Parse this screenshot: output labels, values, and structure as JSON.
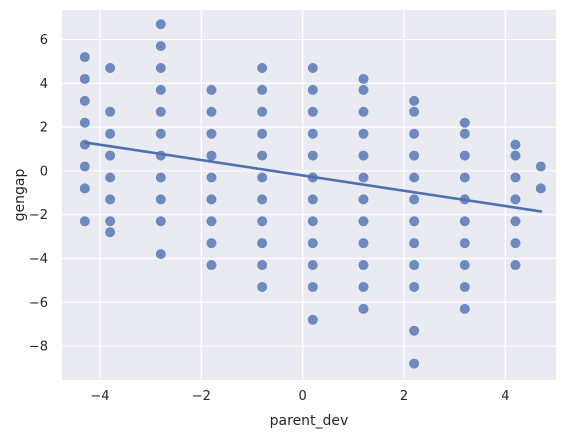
{
  "chart_data": {
    "type": "scatter",
    "xlabel": "parent_dev",
    "ylabel": "gengap",
    "xlim": [
      -4.75,
      5.0
    ],
    "ylim": [
      -9.55,
      7.35
    ],
    "x_ticks": [
      -4,
      -2,
      0,
      2,
      4
    ],
    "y_ticks": [
      -8,
      -6,
      -4,
      -2,
      0,
      2,
      4,
      6
    ],
    "grid": true,
    "colors": {
      "background": "#eaeaf2",
      "point": "#4c72b0",
      "line": "#4c72b0",
      "grid": "#ffffff"
    },
    "columns": [
      {
        "x": -4.3,
        "y": [
          5.2,
          4.2,
          3.2,
          2.2,
          1.2,
          0.2,
          -0.8,
          -2.3
        ]
      },
      {
        "x": -3.8,
        "y": [
          4.7,
          2.7,
          1.7,
          0.7,
          -0.3,
          -1.3,
          -2.3,
          -2.8
        ]
      },
      {
        "x": -2.8,
        "y": [
          6.7,
          5.7,
          4.7,
          3.7,
          2.7,
          1.7,
          0.7,
          -0.3,
          -1.3,
          -2.3,
          -3.8
        ]
      },
      {
        "x": -1.8,
        "y": [
          3.7,
          2.7,
          1.7,
          0.7,
          -0.3,
          -1.3,
          -2.3,
          -3.3,
          -4.3
        ]
      },
      {
        "x": -0.8,
        "y": [
          4.7,
          3.7,
          2.7,
          1.7,
          0.7,
          -0.3,
          -1.3,
          -2.3,
          -3.3,
          -4.3,
          -5.3
        ]
      },
      {
        "x": 0.2,
        "y": [
          4.7,
          3.7,
          2.7,
          1.7,
          0.7,
          -0.3,
          -1.3,
          -2.3,
          -3.3,
          -4.3,
          -5.3,
          -6.8
        ]
      },
      {
        "x": 1.2,
        "y": [
          4.2,
          3.7,
          2.7,
          1.7,
          0.7,
          -0.3,
          -1.3,
          -2.3,
          -3.3,
          -4.3,
          -5.3,
          -6.3
        ]
      },
      {
        "x": 2.2,
        "y": [
          3.2,
          2.7,
          1.7,
          0.7,
          -0.3,
          -1.3,
          -2.3,
          -3.3,
          -4.3,
          -5.3,
          -7.3,
          -8.8
        ]
      },
      {
        "x": 3.2,
        "y": [
          2.2,
          1.7,
          0.7,
          -0.3,
          -1.3,
          -2.3,
          -3.3,
          -4.3,
          -5.3,
          -6.3
        ]
      },
      {
        "x": 4.2,
        "y": [
          1.2,
          0.7,
          -0.3,
          -1.3,
          -2.3,
          -3.3,
          -4.3
        ]
      },
      {
        "x": 4.7,
        "y": [
          0.2,
          -0.8
        ]
      }
    ],
    "regression": {
      "x": [
        -4.3,
        4.7
      ],
      "y": [
        1.3,
        -1.85
      ]
    }
  }
}
